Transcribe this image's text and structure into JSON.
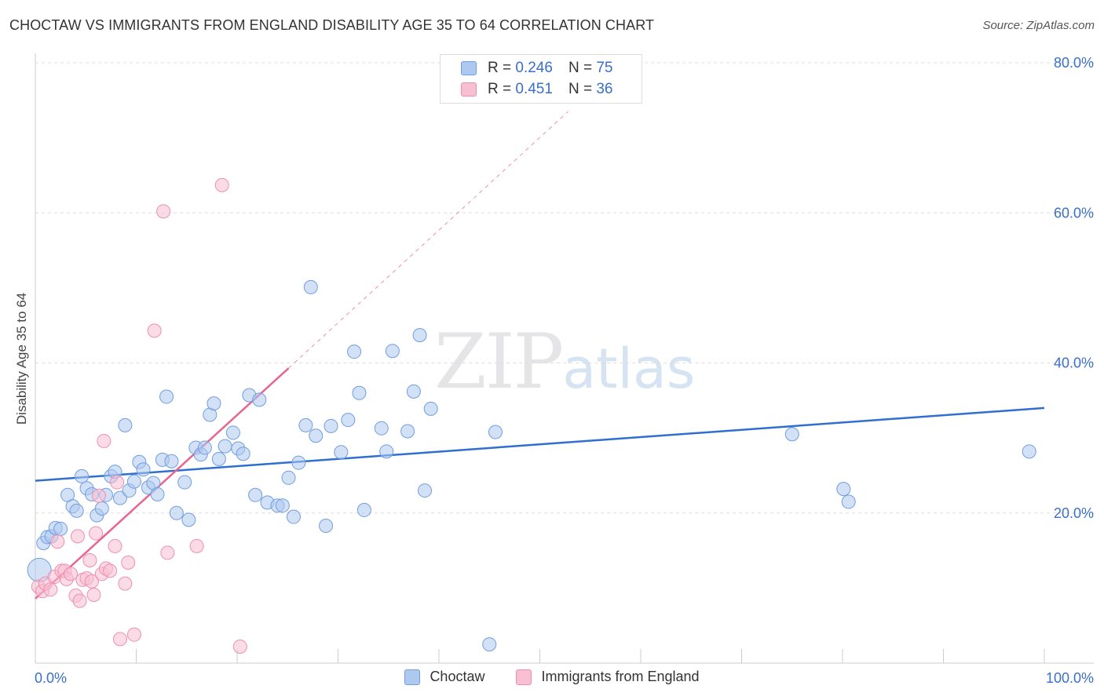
{
  "header": {
    "title": "CHOCTAW VS IMMIGRANTS FROM ENGLAND DISABILITY AGE 35 TO 64 CORRELATION CHART",
    "source": "Source: ZipAtlas.com"
  },
  "watermark": {
    "zip": "ZIP",
    "atlas": "atlas"
  },
  "legend": {
    "rows": [
      {
        "r_label": "R =",
        "r_value": "0.246",
        "n_label": "N =",
        "n_value": "75"
      },
      {
        "r_label": "R =",
        "r_value": "0.451",
        "n_label": "N =",
        "n_value": "36"
      }
    ]
  },
  "bottom_legend": {
    "series1": "Choctaw",
    "series2": "Immigrants from England"
  },
  "chart_data": {
    "type": "scatter",
    "title": "CHOCTAW VS IMMIGRANTS FROM ENGLAND DISABILITY AGE 35 TO 64 CORRELATION CHART",
    "xlabel": "",
    "ylabel": "Disability Age 35 to 64",
    "xlim": [
      0,
      100
    ],
    "ylim": [
      0,
      80
    ],
    "x_tick_labels": [
      "0.0%",
      "100.0%"
    ],
    "y_tick_labels": [
      "20.0%",
      "40.0%",
      "60.0%",
      "80.0%"
    ],
    "y_ticks": [
      20,
      40,
      60,
      80
    ],
    "colors": {
      "choctaw_fill": "#aec9f0",
      "choctaw_stroke": "#6f9ee0",
      "choctaw_line": "#2f6fcf",
      "england_fill": "#f7bfd1",
      "england_stroke": "#ee8fae",
      "england_line": "#e8658f",
      "axis_label": "#3a6fc9",
      "grid": "#dddddd"
    },
    "series": [
      {
        "name": "Choctaw",
        "trend": {
          "x0": 0,
          "y0": 24.3,
          "x1": 100,
          "y1": 34.0,
          "dashed_to": null
        },
        "points": [
          [
            0.4,
            12.4
          ],
          [
            0.8,
            16.0
          ],
          [
            1.2,
            16.8
          ],
          [
            1.6,
            16.9
          ],
          [
            2.0,
            18.0
          ],
          [
            2.5,
            17.9
          ],
          [
            3.2,
            22.4
          ],
          [
            3.7,
            20.9
          ],
          [
            4.1,
            20.3
          ],
          [
            4.6,
            24.9
          ],
          [
            5.1,
            23.3
          ],
          [
            5.6,
            22.5
          ],
          [
            6.1,
            19.7
          ],
          [
            6.6,
            20.6
          ],
          [
            7.0,
            22.4
          ],
          [
            7.5,
            24.9
          ],
          [
            7.9,
            25.5
          ],
          [
            8.4,
            22.0
          ],
          [
            8.9,
            31.7
          ],
          [
            9.3,
            23.0
          ],
          [
            9.8,
            24.2
          ],
          [
            10.3,
            26.8
          ],
          [
            10.7,
            25.8
          ],
          [
            11.2,
            23.4
          ],
          [
            11.7,
            24.0
          ],
          [
            12.1,
            22.5
          ],
          [
            12.6,
            27.1
          ],
          [
            13.0,
            35.5
          ],
          [
            13.5,
            26.9
          ],
          [
            14.0,
            20.0
          ],
          [
            14.8,
            24.1
          ],
          [
            15.2,
            19.1
          ],
          [
            15.9,
            28.7
          ],
          [
            16.4,
            27.8
          ],
          [
            16.8,
            28.7
          ],
          [
            17.3,
            33.1
          ],
          [
            17.7,
            34.6
          ],
          [
            18.2,
            27.2
          ],
          [
            18.8,
            28.9
          ],
          [
            19.6,
            30.7
          ],
          [
            20.1,
            28.6
          ],
          [
            20.6,
            27.9
          ],
          [
            21.2,
            35.7
          ],
          [
            22.2,
            35.1
          ],
          [
            21.8,
            22.4
          ],
          [
            23.0,
            21.4
          ],
          [
            24.0,
            21.0
          ],
          [
            24.5,
            21.0
          ],
          [
            25.1,
            24.7
          ],
          [
            25.6,
            19.5
          ],
          [
            26.1,
            26.7
          ],
          [
            26.8,
            31.7
          ],
          [
            27.3,
            50.1
          ],
          [
            27.8,
            30.3
          ],
          [
            29.3,
            31.6
          ],
          [
            30.3,
            28.1
          ],
          [
            28.8,
            18.3
          ],
          [
            31.0,
            32.4
          ],
          [
            31.6,
            41.5
          ],
          [
            32.1,
            36.0
          ],
          [
            32.6,
            20.4
          ],
          [
            34.3,
            31.3
          ],
          [
            34.8,
            28.2
          ],
          [
            35.4,
            41.6
          ],
          [
            36.9,
            30.9
          ],
          [
            37.5,
            36.2
          ],
          [
            38.1,
            43.7
          ],
          [
            39.2,
            33.9
          ],
          [
            38.6,
            23.0
          ],
          [
            45.6,
            30.8
          ],
          [
            45.0,
            2.5
          ],
          [
            75.0,
            30.5
          ],
          [
            80.1,
            23.2
          ],
          [
            80.6,
            21.5
          ],
          [
            98.5,
            28.2
          ]
        ]
      },
      {
        "name": "Immigrants from England",
        "trend": {
          "x0": 0,
          "y0": 8.6,
          "x1": 25.1,
          "y1": 39.3,
          "dashed_to": [
            52.8,
            73.5
          ]
        },
        "points": [
          [
            0.3,
            10.2
          ],
          [
            0.7,
            9.6
          ],
          [
            1.0,
            10.6
          ],
          [
            1.5,
            9.8
          ],
          [
            1.9,
            11.5
          ],
          [
            2.2,
            16.2
          ],
          [
            2.6,
            12.3
          ],
          [
            2.9,
            12.3
          ],
          [
            3.1,
            11.2
          ],
          [
            3.5,
            11.9
          ],
          [
            4.0,
            9.0
          ],
          [
            4.2,
            16.9
          ],
          [
            4.4,
            8.3
          ],
          [
            4.7,
            11.1
          ],
          [
            5.1,
            11.3
          ],
          [
            5.4,
            13.7
          ],
          [
            5.6,
            10.9
          ],
          [
            5.8,
            9.1
          ],
          [
            6.0,
            17.3
          ],
          [
            6.3,
            22.3
          ],
          [
            6.6,
            11.9
          ],
          [
            7.0,
            12.6
          ],
          [
            7.4,
            12.3
          ],
          [
            7.9,
            15.6
          ],
          [
            8.1,
            24.1
          ],
          [
            8.4,
            3.2
          ],
          [
            8.9,
            10.6
          ],
          [
            9.2,
            13.4
          ],
          [
            9.8,
            3.8
          ],
          [
            11.8,
            44.3
          ],
          [
            12.7,
            60.2
          ],
          [
            13.1,
            14.7
          ],
          [
            16.0,
            15.6
          ],
          [
            18.5,
            63.7
          ],
          [
            20.3,
            2.2
          ],
          [
            6.8,
            29.6
          ]
        ]
      }
    ]
  }
}
